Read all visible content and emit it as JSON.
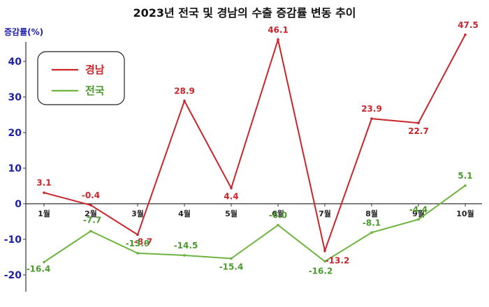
{
  "chart_data": {
    "type": "line",
    "title": "2023년 전국 및 경남의 수출 증감률 변동 추이",
    "ylabel": "증감률(%)",
    "xlabel": "",
    "categories": [
      "1월",
      "2월",
      "3월",
      "4월",
      "5월",
      "6월",
      "7월",
      "8월",
      "9월",
      "10월"
    ],
    "ylim": [
      -20,
      50
    ],
    "yticks": [
      -20,
      -10,
      0,
      10,
      20,
      30,
      40
    ],
    "series": [
      {
        "name": "경남",
        "color": "#c9252b",
        "values": [
          3.1,
          -0.4,
          -8.7,
          28.9,
          4.4,
          46.1,
          -13.2,
          23.9,
          22.7,
          47.5
        ]
      },
      {
        "name": "전국",
        "color": "#6db33f",
        "values": [
          -16.4,
          -7.7,
          -13.9,
          -14.5,
          -15.4,
          -6.0,
          -16.2,
          -8.1,
          -4.4,
          5.1
        ]
      }
    ],
    "legend": "top-left",
    "grid": false
  }
}
